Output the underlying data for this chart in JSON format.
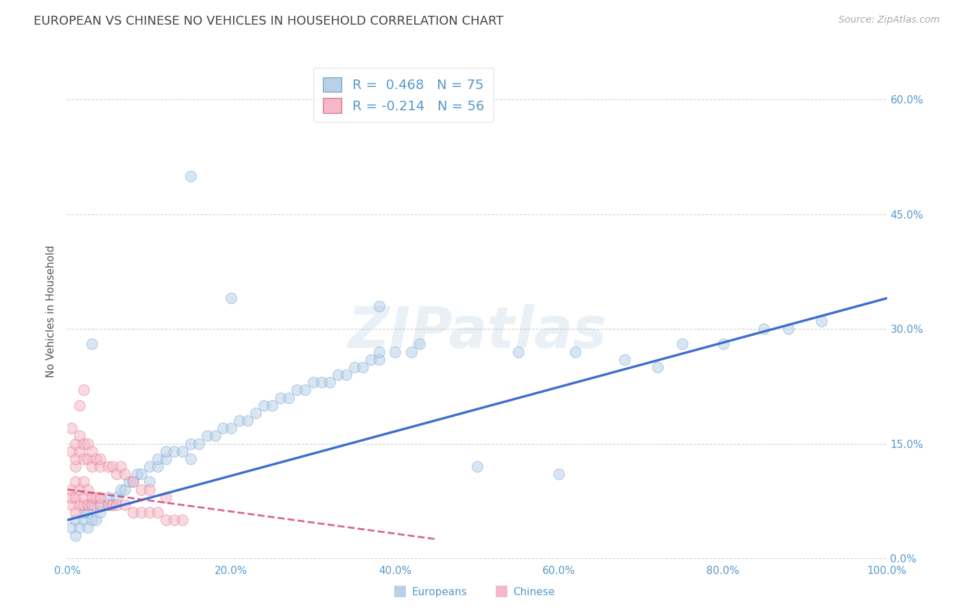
{
  "title": "EUROPEAN VS CHINESE NO VEHICLES IN HOUSEHOLD CORRELATION CHART",
  "source": "Source: ZipAtlas.com",
  "ylabel": "No Vehicles in Household",
  "xlim": [
    0,
    1.0
  ],
  "ylim": [
    -0.005,
    0.65
  ],
  "xticks": [
    0.0,
    0.2,
    0.4,
    0.6,
    0.8,
    1.0
  ],
  "xticklabels": [
    "0.0%",
    "20.0%",
    "40.0%",
    "60.0%",
    "80.0%",
    "100.0%"
  ],
  "yticks": [
    0.0,
    0.15,
    0.3,
    0.45,
    0.6
  ],
  "yticklabels": [
    "0.0%",
    "15.0%",
    "30.0%",
    "45.0%",
    "60.0%"
  ],
  "background_color": "#ffffff",
  "grid_color": "#c8c8c8",
  "blue_fill": "#b8d0e8",
  "pink_fill": "#f5b8c8",
  "blue_edge": "#6699cc",
  "pink_edge": "#e06080",
  "line_blue": "#3366cc",
  "line_pink": "#cc3366",
  "legend_R_blue": "0.468",
  "legend_N_blue": "75",
  "legend_R_pink": "-0.214",
  "legend_N_pink": "56",
  "title_color": "#444444",
  "axis_tick_color": "#5599cc",
  "ylabel_color": "#555555",
  "blue_trend_x0": 0.0,
  "blue_trend_y0": 0.05,
  "blue_trend_x1": 1.0,
  "blue_trend_y1": 0.34,
  "pink_trend_x0": 0.0,
  "pink_trend_y0": 0.09,
  "pink_trend_x1": 0.45,
  "pink_trend_y1": 0.025,
  "blue_scatter_x": [
    0.005,
    0.01,
    0.01,
    0.015,
    0.02,
    0.02,
    0.025,
    0.025,
    0.03,
    0.03,
    0.035,
    0.04,
    0.04,
    0.05,
    0.05,
    0.055,
    0.06,
    0.065,
    0.07,
    0.075,
    0.08,
    0.085,
    0.09,
    0.1,
    0.1,
    0.11,
    0.11,
    0.12,
    0.12,
    0.13,
    0.14,
    0.15,
    0.15,
    0.16,
    0.17,
    0.18,
    0.19,
    0.2,
    0.21,
    0.22,
    0.23,
    0.24,
    0.25,
    0.26,
    0.27,
    0.28,
    0.29,
    0.3,
    0.31,
    0.32,
    0.33,
    0.34,
    0.35,
    0.36,
    0.37,
    0.38,
    0.38,
    0.4,
    0.42,
    0.43,
    0.5,
    0.55,
    0.62,
    0.68,
    0.72,
    0.75,
    0.8,
    0.85,
    0.88,
    0.92,
    0.38,
    0.15,
    0.2,
    0.6,
    0.03
  ],
  "blue_scatter_y": [
    0.04,
    0.03,
    0.05,
    0.04,
    0.05,
    0.06,
    0.04,
    0.06,
    0.05,
    0.07,
    0.05,
    0.06,
    0.07,
    0.07,
    0.08,
    0.07,
    0.08,
    0.09,
    0.09,
    0.1,
    0.1,
    0.11,
    0.11,
    0.1,
    0.12,
    0.12,
    0.13,
    0.13,
    0.14,
    0.14,
    0.14,
    0.13,
    0.15,
    0.15,
    0.16,
    0.16,
    0.17,
    0.17,
    0.18,
    0.18,
    0.19,
    0.2,
    0.2,
    0.21,
    0.21,
    0.22,
    0.22,
    0.23,
    0.23,
    0.23,
    0.24,
    0.24,
    0.25,
    0.25,
    0.26,
    0.26,
    0.27,
    0.27,
    0.27,
    0.28,
    0.12,
    0.27,
    0.27,
    0.26,
    0.25,
    0.28,
    0.28,
    0.3,
    0.3,
    0.31,
    0.33,
    0.5,
    0.34,
    0.11,
    0.28
  ],
  "pink_scatter_x": [
    0.005,
    0.005,
    0.005,
    0.01,
    0.01,
    0.01,
    0.01,
    0.015,
    0.015,
    0.02,
    0.02,
    0.02,
    0.025,
    0.025,
    0.03,
    0.03,
    0.035,
    0.04,
    0.04,
    0.05,
    0.055,
    0.06,
    0.07,
    0.08,
    0.09,
    0.1,
    0.11,
    0.12,
    0.13,
    0.14,
    0.005,
    0.005,
    0.01,
    0.01,
    0.015,
    0.015,
    0.02,
    0.02,
    0.025,
    0.025,
    0.03,
    0.03,
    0.035,
    0.04,
    0.04,
    0.05,
    0.055,
    0.06,
    0.065,
    0.07,
    0.08,
    0.09,
    0.1,
    0.12,
    0.015,
    0.02
  ],
  "pink_scatter_y": [
    0.07,
    0.08,
    0.09,
    0.06,
    0.08,
    0.1,
    0.12,
    0.07,
    0.09,
    0.07,
    0.08,
    0.1,
    0.07,
    0.09,
    0.07,
    0.08,
    0.08,
    0.07,
    0.08,
    0.07,
    0.07,
    0.07,
    0.07,
    0.06,
    0.06,
    0.06,
    0.06,
    0.05,
    0.05,
    0.05,
    0.14,
    0.17,
    0.13,
    0.15,
    0.14,
    0.16,
    0.13,
    0.15,
    0.13,
    0.15,
    0.12,
    0.14,
    0.13,
    0.12,
    0.13,
    0.12,
    0.12,
    0.11,
    0.12,
    0.11,
    0.1,
    0.09,
    0.09,
    0.08,
    0.2,
    0.22
  ],
  "watermark": "ZIPatlas",
  "scatter_size": 130,
  "scatter_alpha": 0.55
}
